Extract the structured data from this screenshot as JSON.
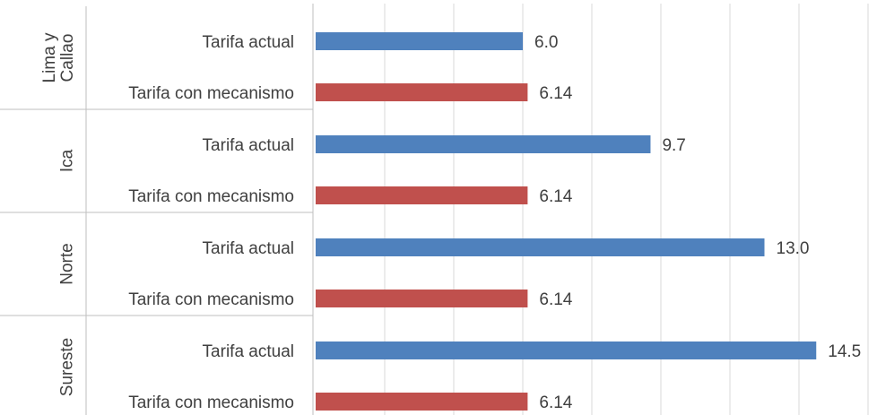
{
  "chart_data": {
    "type": "bar",
    "orientation": "horizontal",
    "groups": [
      {
        "name": "Lima y Callao",
        "name_lines": [
          "Lima y",
          "Callao"
        ],
        "bars": [
          {
            "category": "Tarifa actual",
            "value": 6.0,
            "label": "6.0"
          },
          {
            "category": "Tarifa con mecanismo",
            "value": 6.14,
            "label": "6.14"
          }
        ]
      },
      {
        "name": "Ica",
        "name_lines": [
          "Ica"
        ],
        "bars": [
          {
            "category": "Tarifa actual",
            "value": 9.7,
            "label": "9.7"
          },
          {
            "category": "Tarifa con mecanismo",
            "value": 6.14,
            "label": "6.14"
          }
        ]
      },
      {
        "name": "Norte",
        "name_lines": [
          "Norte"
        ],
        "bars": [
          {
            "category": "Tarifa actual",
            "value": 13.0,
            "label": "13.0"
          },
          {
            "category": "Tarifa con mecanismo",
            "value": 6.14,
            "label": "6.14"
          }
        ]
      },
      {
        "name": "Sureste",
        "name_lines": [
          "Sureste"
        ],
        "bars": [
          {
            "category": "Tarifa actual",
            "value": 14.5,
            "label": "14.5"
          },
          {
            "category": "Tarifa con mecanismo",
            "value": 6.14,
            "label": "6.14"
          }
        ]
      }
    ],
    "xlim": [
      0,
      16
    ],
    "grid_step": 2,
    "grid": true,
    "legend": "none",
    "colors": {
      "Tarifa actual": "#4f81bd",
      "Tarifa con mecanismo": "#c0504d"
    }
  }
}
